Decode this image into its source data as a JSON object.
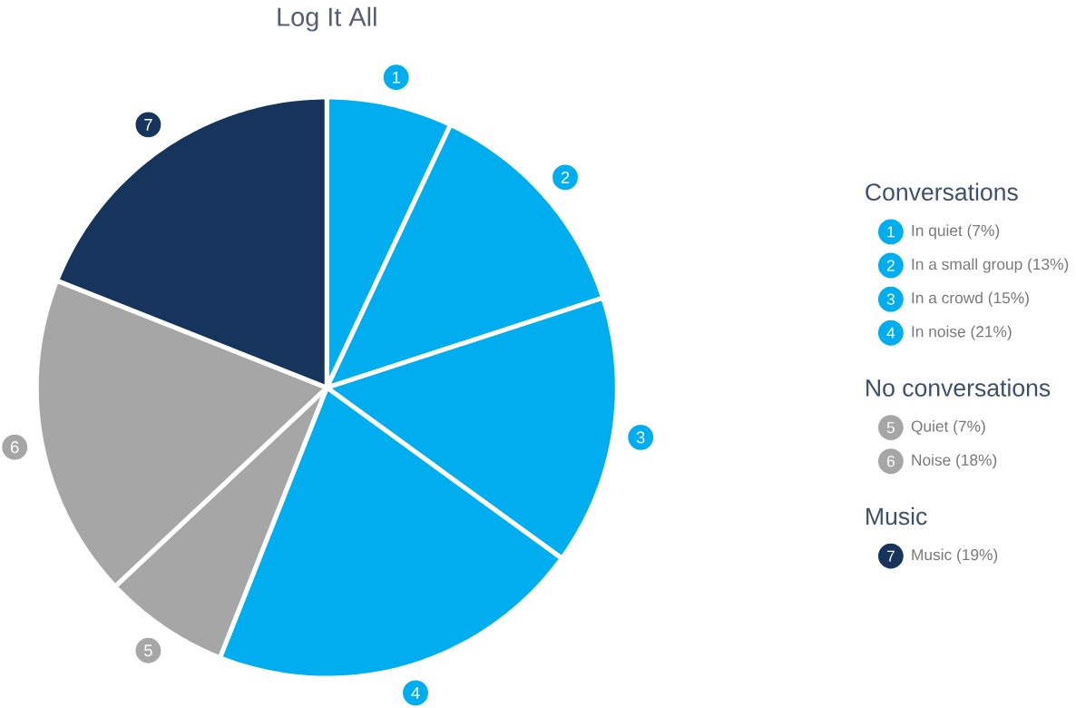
{
  "chart_data": {
    "type": "pie",
    "title": "Log It All",
    "categories": [
      "In quiet (7%)",
      "In a small group (13%)",
      "In a crowd (15%)",
      "In noise (21%)",
      "Quiet (7%)",
      "Noise (18%)",
      "Music (19%)"
    ],
    "values": [
      7,
      13,
      15,
      21,
      7,
      18,
      19
    ],
    "colors": [
      "#00aeef",
      "#00aeef",
      "#00aeef",
      "#00aeef",
      "#a6a6a6",
      "#a6a6a6",
      "#17345c"
    ],
    "legend": "right",
    "annotations": [
      "Conversations",
      "No conversations",
      "Music",
      "1",
      "2",
      "3",
      "4",
      "5",
      "6",
      "7"
    ]
  }
}
